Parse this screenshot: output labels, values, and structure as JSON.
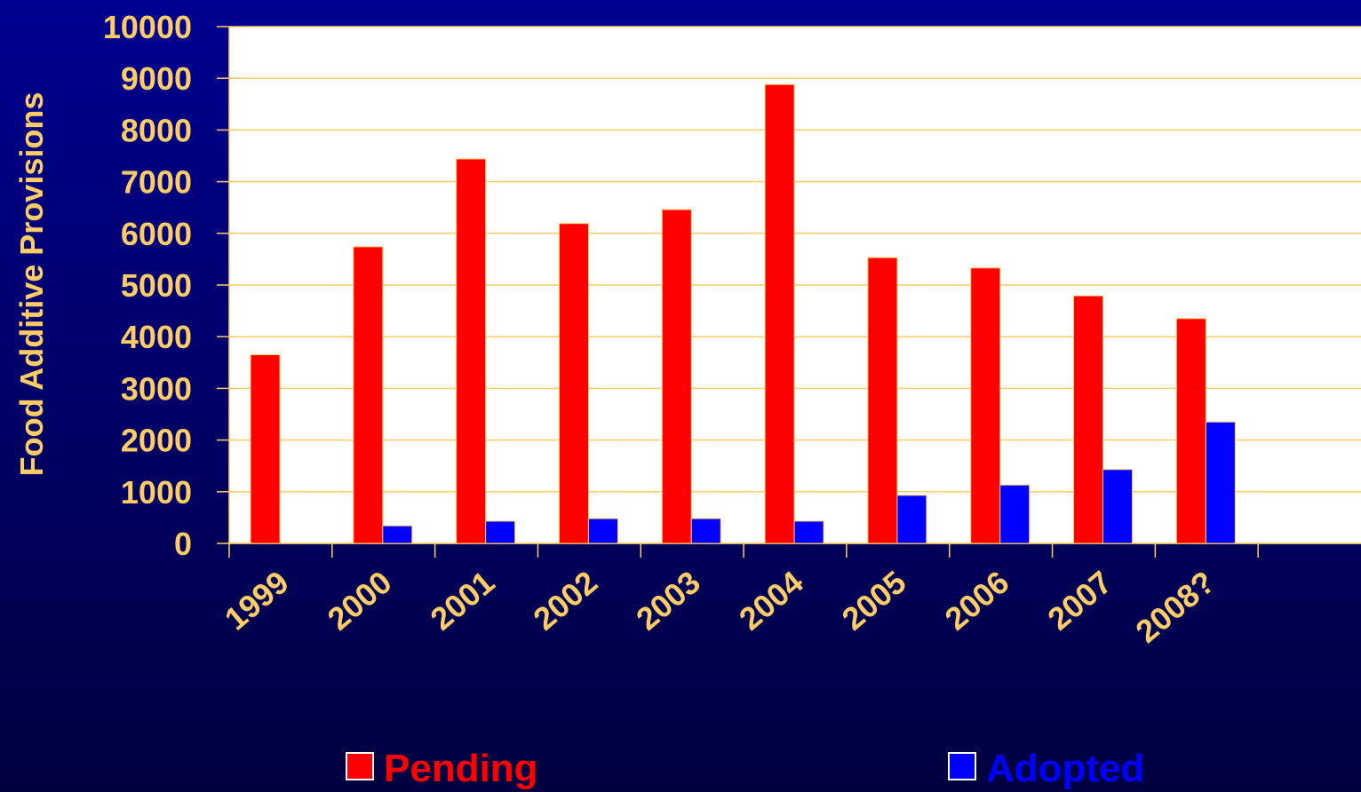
{
  "chart_data": {
    "type": "bar",
    "y_label": "Food Additive Provisions",
    "categories": [
      "1999",
      "2000",
      "2001",
      "2002",
      "2003",
      "2004",
      "2005",
      "2006",
      "2007",
      "2008?",
      null
    ],
    "series": [
      {
        "name": "Pending",
        "color": "#ff0000",
        "values": [
          3650,
          5740,
          7440,
          6190,
          6460,
          8880,
          5530,
          5330,
          4790,
          4350,
          null
        ]
      },
      {
        "name": "Adopted",
        "color": "#0000ff",
        "values": [
          0,
          340,
          430,
          480,
          480,
          430,
          930,
          1130,
          1430,
          2350,
          null
        ]
      }
    ],
    "ylim": [
      0,
      10000
    ],
    "yticks": [
      0,
      1000,
      2000,
      3000,
      4000,
      5000,
      6000,
      7000,
      8000,
      9000,
      10000
    ],
    "grid": true
  }
}
